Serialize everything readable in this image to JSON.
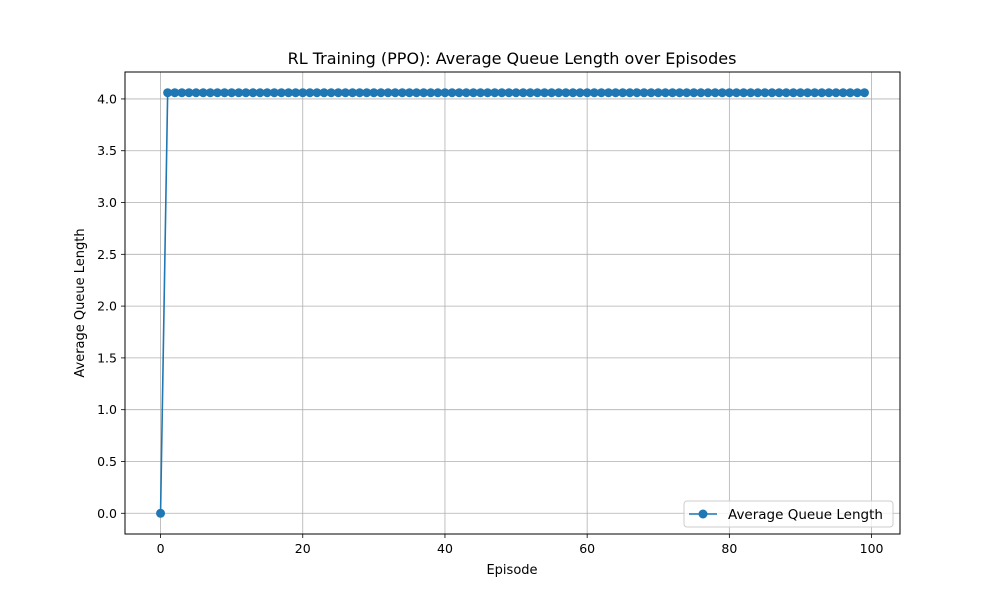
{
  "chart_data": {
    "type": "line",
    "title": "RL Training (PPO): Average Queue Length over Episodes",
    "xlabel": "Episode",
    "ylabel": "Average Queue Length",
    "xlim": [
      -5,
      104
    ],
    "ylim": [
      -0.2,
      4.26
    ],
    "x_ticks": [
      0,
      20,
      40,
      60,
      80,
      100
    ],
    "x_tick_labels": [
      "0",
      "20",
      "40",
      "60",
      "80",
      "100"
    ],
    "y_ticks": [
      0.0,
      0.5,
      1.0,
      1.5,
      2.0,
      2.5,
      3.0,
      3.5,
      4.0
    ],
    "y_tick_labels": [
      "0.0",
      "0.5",
      "1.0",
      "1.5",
      "2.0",
      "2.5",
      "3.0",
      "3.5",
      "4.0"
    ],
    "grid": true,
    "legend_position": "lower-right",
    "series": [
      {
        "name": "Average Queue Length",
        "color": "#1f77b4",
        "marker": "circle",
        "x_start": 0,
        "x_end": 99,
        "values": [
          0.0,
          4.06,
          4.06,
          4.06,
          4.06,
          4.06,
          4.06,
          4.06,
          4.06,
          4.06,
          4.06,
          4.06,
          4.06,
          4.06,
          4.06,
          4.06,
          4.06,
          4.06,
          4.06,
          4.06,
          4.06,
          4.06,
          4.06,
          4.06,
          4.06,
          4.06,
          4.06,
          4.06,
          4.06,
          4.06,
          4.06,
          4.06,
          4.06,
          4.06,
          4.06,
          4.06,
          4.06,
          4.06,
          4.06,
          4.06,
          4.06,
          4.06,
          4.06,
          4.06,
          4.06,
          4.06,
          4.06,
          4.06,
          4.06,
          4.06,
          4.06,
          4.06,
          4.06,
          4.06,
          4.06,
          4.06,
          4.06,
          4.06,
          4.06,
          4.06,
          4.06,
          4.06,
          4.06,
          4.06,
          4.06,
          4.06,
          4.06,
          4.06,
          4.06,
          4.06,
          4.06,
          4.06,
          4.06,
          4.06,
          4.06,
          4.06,
          4.06,
          4.06,
          4.06,
          4.06,
          4.06,
          4.06,
          4.06,
          4.06,
          4.06,
          4.06,
          4.06,
          4.06,
          4.06,
          4.06,
          4.06,
          4.06,
          4.06,
          4.06,
          4.06,
          4.06,
          4.06,
          4.06,
          4.06,
          4.06
        ]
      }
    ]
  }
}
